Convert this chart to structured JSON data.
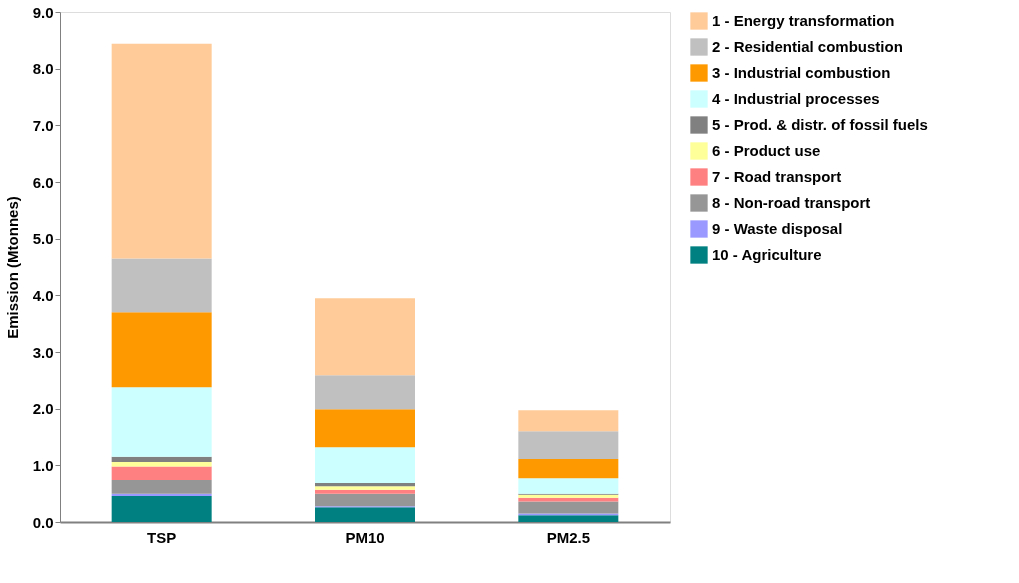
{
  "chart_data": {
    "type": "bar",
    "stacked": true,
    "ylabel": "Emission (Mtonnes)",
    "categories": [
      "TSP",
      "PM10",
      "PM2.5"
    ],
    "ylim": [
      0,
      9
    ],
    "yticks": [
      {
        "value": 0,
        "label": "0.0"
      },
      {
        "value": 1,
        "label": "1.0"
      },
      {
        "value": 2,
        "label": "2.0"
      },
      {
        "value": 3,
        "label": "3.0"
      },
      {
        "value": 4,
        "label": "4.0"
      },
      {
        "value": 5,
        "label": "5.0"
      },
      {
        "value": 6,
        "label": "6.0"
      },
      {
        "value": 7,
        "label": "7.0"
      },
      {
        "value": 8,
        "label": "8.0"
      },
      {
        "value": 9,
        "label": "9.0"
      }
    ],
    "grid": false,
    "legend": "right",
    "series": [
      {
        "name": "10 - Agriculture",
        "color": "#008080",
        "values": [
          0.46,
          0.26,
          0.12
        ]
      },
      {
        "name": "9 - Waste disposal",
        "color": "#9999ff",
        "values": [
          0.04,
          0.02,
          0.03
        ]
      },
      {
        "name": "8 - Non-road transport",
        "color": "#969696",
        "values": [
          0.24,
          0.22,
          0.21
        ]
      },
      {
        "name": "7 - Road transport",
        "color": "#ff8080",
        "values": [
          0.24,
          0.07,
          0.07
        ]
      },
      {
        "name": "6 - Product use",
        "color": "#ffff99",
        "values": [
          0.08,
          0.06,
          0.05
        ]
      },
      {
        "name": "5 - Prod. & distr. of fossil fuels",
        "color": "#808080",
        "values": [
          0.09,
          0.06,
          0.02
        ]
      },
      {
        "name": "4 - Industrial processes",
        "color": "#ccffff",
        "values": [
          1.23,
          0.63,
          0.27
        ]
      },
      {
        "name": "3 - Industrial combustion",
        "color": "#ff9900",
        "values": [
          1.32,
          0.67,
          0.34
        ]
      },
      {
        "name": "2 - Residential combustion",
        "color": "#c0c0c0",
        "values": [
          0.95,
          0.6,
          0.49
        ]
      },
      {
        "name": "1 - Energy transformation",
        "color": "#ffcc99",
        "values": [
          3.79,
          1.36,
          0.37
        ]
      }
    ]
  }
}
